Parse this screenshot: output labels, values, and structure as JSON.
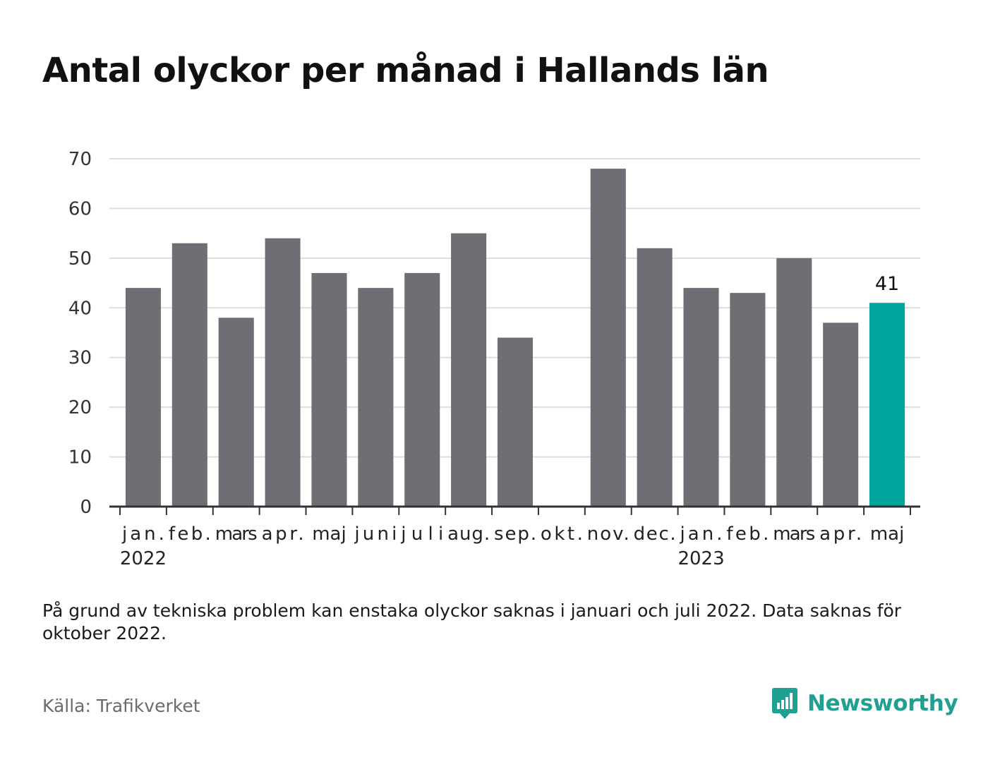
{
  "header": {
    "title": "Antal olyckor per månad i Hallands län"
  },
  "chart_data": {
    "type": "bar",
    "title": "Antal olyckor per månad i Hallands län",
    "xlabel": "",
    "ylabel": "",
    "ylim": [
      0,
      70
    ],
    "yticks": [
      "0",
      "10",
      "20",
      "30",
      "40",
      "50",
      "60",
      "70"
    ],
    "grid": true,
    "categories": [
      "jan.",
      "feb.",
      "mars",
      "apr.",
      "maj",
      "juni",
      "juli",
      "aug.",
      "sep.",
      "okt.",
      "nov.",
      "dec.",
      "jan.",
      "feb.",
      "mars",
      "apr.",
      "maj"
    ],
    "year_labels": [
      {
        "label": "2022",
        "category_index": 0
      },
      {
        "label": "2023",
        "category_index": 12
      }
    ],
    "values": [
      44,
      53,
      38,
      54,
      47,
      44,
      47,
      55,
      34,
      null,
      68,
      52,
      44,
      43,
      50,
      37,
      41
    ],
    "highlight": {
      "index": 16,
      "label": "41"
    },
    "colors": {
      "bar": "#6f6e74",
      "highlight": "#00a59b",
      "grid": "#dddddd",
      "axis": "#333333"
    }
  },
  "footer": {
    "note": "På grund av tekniska problem kan enstaka olyckor saknas i januari och juli 2022. Data saknas för oktober 2022.",
    "source": "Källa: Trafikverket",
    "brand": "Newsworthy",
    "brand_color": "#20a090"
  }
}
